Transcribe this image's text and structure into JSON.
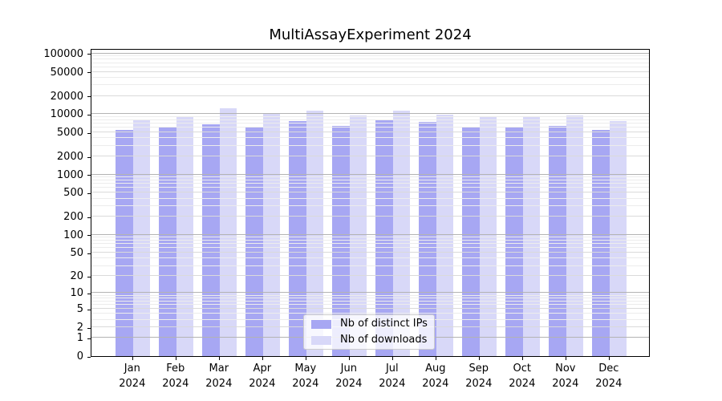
{
  "title": "MultiAssayExperiment 2024",
  "chart_data": {
    "type": "bar",
    "title": "MultiAssayExperiment 2024",
    "x_categories": [
      {
        "month": "Jan",
        "year": "2024"
      },
      {
        "month": "Feb",
        "year": "2024"
      },
      {
        "month": "Mar",
        "year": "2024"
      },
      {
        "month": "Apr",
        "year": "2024"
      },
      {
        "month": "May",
        "year": "2024"
      },
      {
        "month": "Jun",
        "year": "2024"
      },
      {
        "month": "Jul",
        "year": "2024"
      },
      {
        "month": "Aug",
        "year": "2024"
      },
      {
        "month": "Sep",
        "year": "2024"
      },
      {
        "month": "Oct",
        "year": "2024"
      },
      {
        "month": "Nov",
        "year": "2024"
      },
      {
        "month": "Dec",
        "year": "2024"
      }
    ],
    "series": [
      {
        "name": "Nb of distinct IPs",
        "color": "#a7a7f3",
        "values": [
          5500,
          6100,
          6900,
          6300,
          7600,
          6400,
          8200,
          7400,
          6200,
          6100,
          6500,
          5500
        ]
      },
      {
        "name": "Nb of downloads",
        "color": "#d8d8f8",
        "values": [
          8200,
          9300,
          12600,
          10400,
          11300,
          9500,
          11300,
          9900,
          8900,
          8900,
          9500,
          7700
        ]
      }
    ],
    "y_scale": "log10(1+value)",
    "y_ticks": [
      0,
      1,
      2,
      5,
      10,
      20,
      50,
      100,
      200,
      500,
      1000,
      2000,
      5000,
      10000,
      20000,
      50000,
      100000
    ],
    "y_minor_mantissas": [
      3,
      4,
      6,
      7,
      8,
      9
    ],
    "ylim": [
      0,
      124000
    ],
    "grid": {
      "power10_color": "#b3b3b3",
      "labeled_color": "#dadada",
      "minor_color": "#ececec"
    },
    "legend": {
      "position": "lower center"
    }
  }
}
